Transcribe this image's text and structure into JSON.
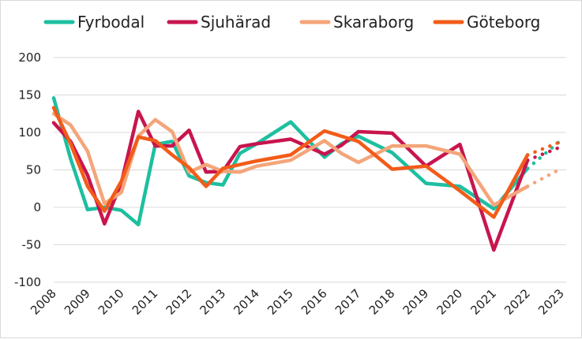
{
  "chart_data": {
    "type": "line",
    "title": "",
    "xlabel": "",
    "ylabel": "",
    "x": [
      "2008",
      "2009",
      "2010",
      "2011",
      "2012",
      "2013",
      "2014",
      "2015",
      "2016",
      "2017",
      "2018",
      "2019",
      "2020",
      "2021",
      "2022",
      "2023"
    ],
    "ylim": [
      -100,
      200
    ],
    "yticks": [
      -100,
      -50,
      0,
      50,
      100,
      150,
      200
    ],
    "grid": true,
    "legend": "top",
    "series": [
      {
        "name": "Fyrbodal",
        "color": "#1dbfa0",
        "points": [
          [
            2008,
            146
          ],
          [
            2008.5,
            65
          ],
          [
            2009,
            -3
          ],
          [
            2009.5,
            0
          ],
          [
            2010,
            -4
          ],
          [
            2010.5,
            -23
          ],
          [
            2011,
            84
          ],
          [
            2011.5,
            88
          ],
          [
            2012,
            42
          ],
          [
            2012.5,
            33
          ],
          [
            2013,
            30
          ],
          [
            2013.5,
            72
          ],
          [
            2014,
            85
          ],
          [
            2015,
            114
          ],
          [
            2016,
            67
          ],
          [
            2016.5,
            85
          ],
          [
            2017,
            95
          ],
          [
            2018,
            73
          ],
          [
            2019,
            32
          ],
          [
            2020,
            28
          ],
          [
            2021,
            -2
          ],
          [
            2022,
            52
          ]
        ],
        "forecast": [
          [
            2022,
            52
          ],
          [
            2023,
            90
          ]
        ]
      },
      {
        "name": "Sjuhärad",
        "color": "#c8154e",
        "points": [
          [
            2008,
            113
          ],
          [
            2008.5,
            88
          ],
          [
            2009,
            43
          ],
          [
            2009.5,
            -22
          ],
          [
            2010,
            33
          ],
          [
            2010.5,
            128
          ],
          [
            2011,
            82
          ],
          [
            2011.5,
            82
          ],
          [
            2012,
            103
          ],
          [
            2012.5,
            47
          ],
          [
            2013,
            48
          ],
          [
            2013.5,
            81
          ],
          [
            2014,
            85
          ],
          [
            2015,
            91
          ],
          [
            2016,
            71
          ],
          [
            2016.5,
            83
          ],
          [
            2017,
            101
          ],
          [
            2018,
            99
          ],
          [
            2019,
            55
          ],
          [
            2020,
            84
          ],
          [
            2021,
            -57
          ],
          [
            2022,
            63
          ]
        ],
        "forecast": [
          [
            2022,
            63
          ],
          [
            2023,
            81
          ]
        ]
      },
      {
        "name": "Skaraborg",
        "color": "#f4a57a",
        "points": [
          [
            2008,
            125
          ],
          [
            2008.5,
            110
          ],
          [
            2009,
            75
          ],
          [
            2009.5,
            5
          ],
          [
            2010,
            20
          ],
          [
            2010.5,
            95
          ],
          [
            2011,
            117
          ],
          [
            2011.5,
            101
          ],
          [
            2012,
            47
          ],
          [
            2012.5,
            57
          ],
          [
            2013,
            48
          ],
          [
            2013.5,
            47
          ],
          [
            2014,
            55
          ],
          [
            2015,
            63
          ],
          [
            2016,
            89
          ],
          [
            2016.5,
            72
          ],
          [
            2017,
            60
          ],
          [
            2018,
            82
          ],
          [
            2019,
            82
          ],
          [
            2020,
            71
          ],
          [
            2021,
            3
          ],
          [
            2022,
            28
          ]
        ],
        "forecast": [
          [
            2022,
            28
          ],
          [
            2023,
            52
          ]
        ]
      },
      {
        "name": "Göteborg",
        "color": "#f25c19",
        "points": [
          [
            2008,
            133
          ],
          [
            2008.5,
            85
          ],
          [
            2009,
            28
          ],
          [
            2009.5,
            -5
          ],
          [
            2010,
            35
          ],
          [
            2010.5,
            94
          ],
          [
            2011,
            89
          ],
          [
            2011.5,
            70
          ],
          [
            2012,
            53
          ],
          [
            2012.5,
            28
          ],
          [
            2013,
            52
          ],
          [
            2014,
            62
          ],
          [
            2015,
            70
          ],
          [
            2016,
            102
          ],
          [
            2017,
            88
          ],
          [
            2018,
            51
          ],
          [
            2019,
            55
          ],
          [
            2020,
            22
          ],
          [
            2021,
            -13
          ],
          [
            2022,
            70
          ]
        ],
        "forecast": [
          [
            2022,
            70
          ],
          [
            2023,
            88
          ]
        ]
      }
    ]
  }
}
